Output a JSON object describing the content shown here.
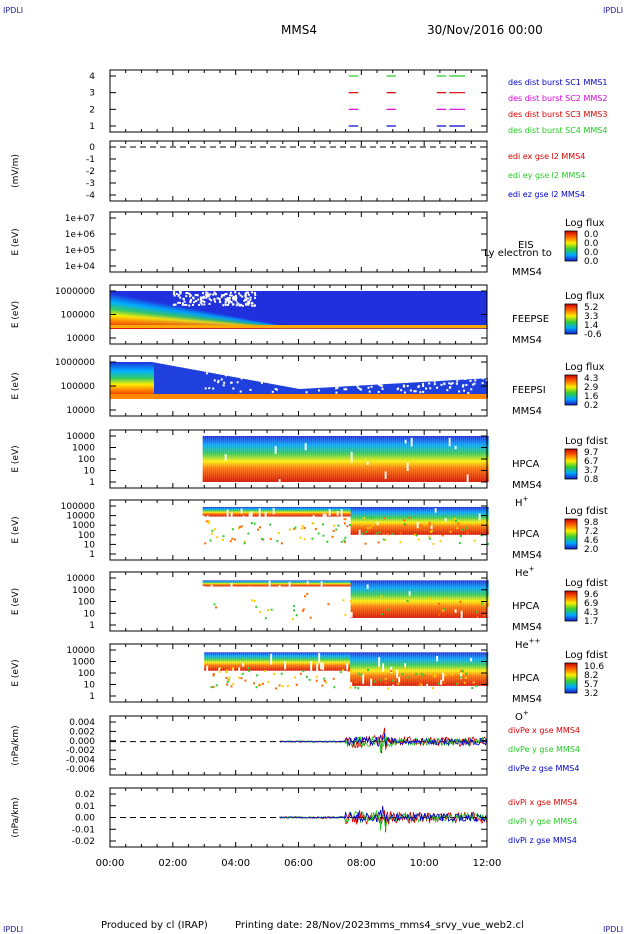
{
  "header": {
    "corner_label": "IPDLI",
    "spacecraft": "MMS4",
    "date": "30/Nov/2016 00:00"
  },
  "footer": {
    "produced": "Produced by cl (IRAP)",
    "printing": "Printing date: 28/Nov/2023",
    "file": "mms_mms4_srvy_vue_web2.cl"
  },
  "colors": {
    "red": "#dd0000",
    "green": "#22cc22",
    "blue": "#0000cc",
    "magenta": "#dd00dd"
  },
  "chart_data": [
    {
      "type": "line",
      "title": "des dist burst",
      "yticks": [
        "4",
        "3",
        "2",
        "1"
      ],
      "legend": [
        {
          "text": "des dist burst SC1 MMS1",
          "color": "#0000cc"
        },
        {
          "text": "des dist burst SC2 MMS2",
          "color": "#dd00dd"
        },
        {
          "text": "des dist burst SC3 MMS3",
          "color": "#dd0000"
        },
        {
          "text": "des dist burst SC4 MMS4",
          "color": "#22cc22"
        }
      ],
      "series": [
        {
          "name": "SC1",
          "y": 1,
          "intervals_h": [
            [
              7.6,
              7.9
            ],
            [
              8.8,
              9.1
            ],
            [
              10.4,
              10.7
            ],
            [
              10.8,
              11.3
            ]
          ]
        },
        {
          "name": "SC2",
          "y": 2,
          "intervals_h": [
            [
              7.6,
              7.9
            ],
            [
              8.8,
              9.1
            ],
            [
              10.4,
              10.7
            ],
            [
              10.8,
              11.3
            ]
          ]
        },
        {
          "name": "SC3",
          "y": 3,
          "intervals_h": [
            [
              7.6,
              7.9
            ],
            [
              8.8,
              9.1
            ],
            [
              10.4,
              10.7
            ],
            [
              10.8,
              11.3
            ]
          ]
        },
        {
          "name": "SC4",
          "y": 4,
          "intervals_h": [
            [
              7.6,
              7.9
            ],
            [
              8.8,
              9.1
            ],
            [
              10.4,
              10.7
            ],
            [
              10.8,
              11.3
            ]
          ]
        }
      ]
    },
    {
      "type": "line",
      "ylabel": "(mV/m)",
      "yticks": [
        "0",
        "-1",
        "-2",
        "-3",
        "-4"
      ],
      "legend": [
        {
          "text": "edi ex gse l2 MMS4",
          "color": "#dd0000"
        },
        {
          "text": "edi ey gse l2 MMS4",
          "color": "#22cc22"
        },
        {
          "text": "edi ez gse l2 MMS4",
          "color": "#0000cc"
        }
      ]
    },
    {
      "type": "heatmap",
      "ylabel": "E (eV)",
      "yticks": [
        "1e+07",
        "1e+06",
        "1e+05",
        "1e+04"
      ],
      "instrument": "EIS",
      "subtitle": "Ly electron to",
      "spacecraft": "MMS4",
      "colorbar_title": "Log flux",
      "colorbar_ticks": [
        "0.0",
        "0.0",
        "0.0",
        "0.0"
      ]
    },
    {
      "type": "heatmap",
      "ylabel": "E (eV)",
      "yticks": [
        "1000000",
        "100000",
        "10000"
      ],
      "instrument": "FEEPSE",
      "spacecraft": "MMS4",
      "colorbar_title": "Log flux",
      "colorbar_ticks": [
        "5.2",
        "3.3",
        "1.4",
        "-0.6"
      ]
    },
    {
      "type": "heatmap",
      "ylabel": "E (eV)",
      "yticks": [
        "1000000",
        "100000",
        "10000"
      ],
      "instrument": "FEEPSI",
      "spacecraft": "MMS4",
      "colorbar_title": "Log flux",
      "colorbar_ticks": [
        "4.3",
        "2.9",
        "1.6",
        "0.2"
      ]
    },
    {
      "type": "heatmap",
      "ylabel": "E (eV)",
      "yticks": [
        "10000",
        "1000",
        "100",
        "10",
        "1"
      ],
      "instrument": "HPCA",
      "spacecraft": "MMS4",
      "species": "H+",
      "colorbar_title": "Log fdist",
      "colorbar_ticks": [
        "9.7",
        "6.7",
        "3.7",
        "0.8"
      ]
    },
    {
      "type": "heatmap",
      "ylabel": "E (eV)",
      "yticks": [
        "100000",
        "10000",
        "1000",
        "100",
        "10",
        "1"
      ],
      "instrument": "HPCA",
      "spacecraft": "MMS4",
      "species": "He+",
      "colorbar_title": "Log fdist",
      "colorbar_ticks": [
        "9.8",
        "7.2",
        "4.6",
        "2.0"
      ]
    },
    {
      "type": "heatmap",
      "ylabel": "E (eV)",
      "yticks": [
        "10000",
        "1000",
        "100",
        "10",
        "1"
      ],
      "instrument": "HPCA",
      "spacecraft": "MMS4",
      "species": "He++",
      "colorbar_title": "Log fdist",
      "colorbar_ticks": [
        "9.6",
        "6.9",
        "4.3",
        "1.7"
      ]
    },
    {
      "type": "heatmap",
      "ylabel": "E (eV)",
      "yticks": [
        "10000",
        "1000",
        "100",
        "10",
        "1"
      ],
      "instrument": "HPCA",
      "spacecraft": "MMS4",
      "species": "O+",
      "colorbar_title": "Log fdist",
      "colorbar_ticks": [
        "10.6",
        "8.2",
        "5.7",
        "3.2"
      ]
    },
    {
      "type": "line",
      "ylabel": "(nPa/km)",
      "yticks": [
        "0.004",
        "0.002",
        "0.000",
        "-0.002",
        "-0.004",
        "-0.006"
      ],
      "ylim": [
        -0.007,
        0.005
      ],
      "legend": [
        {
          "text": "divPe x gse MMS4",
          "color": "#dd0000"
        },
        {
          "text": "divPe y gse MMS4",
          "color": "#22cc22"
        },
        {
          "text": "divPe z gse MMS4",
          "color": "#0000cc"
        }
      ]
    },
    {
      "type": "line",
      "ylabel": "(nPa/km)",
      "yticks": [
        "0.02",
        "0.01",
        "0.00",
        "-0.01",
        "-0.02"
      ],
      "ylim": [
        -0.025,
        0.025
      ],
      "legend": [
        {
          "text": "divPi x gse MMS4",
          "color": "#dd0000"
        },
        {
          "text": "divPi y gse MMS4",
          "color": "#22cc22"
        },
        {
          "text": "divPi z gse MMS4",
          "color": "#0000cc"
        }
      ]
    }
  ],
  "xaxis": {
    "ticks": [
      "00:00",
      "02:00",
      "04:00",
      "06:00",
      "08:00",
      "10:00",
      "12:00"
    ]
  }
}
